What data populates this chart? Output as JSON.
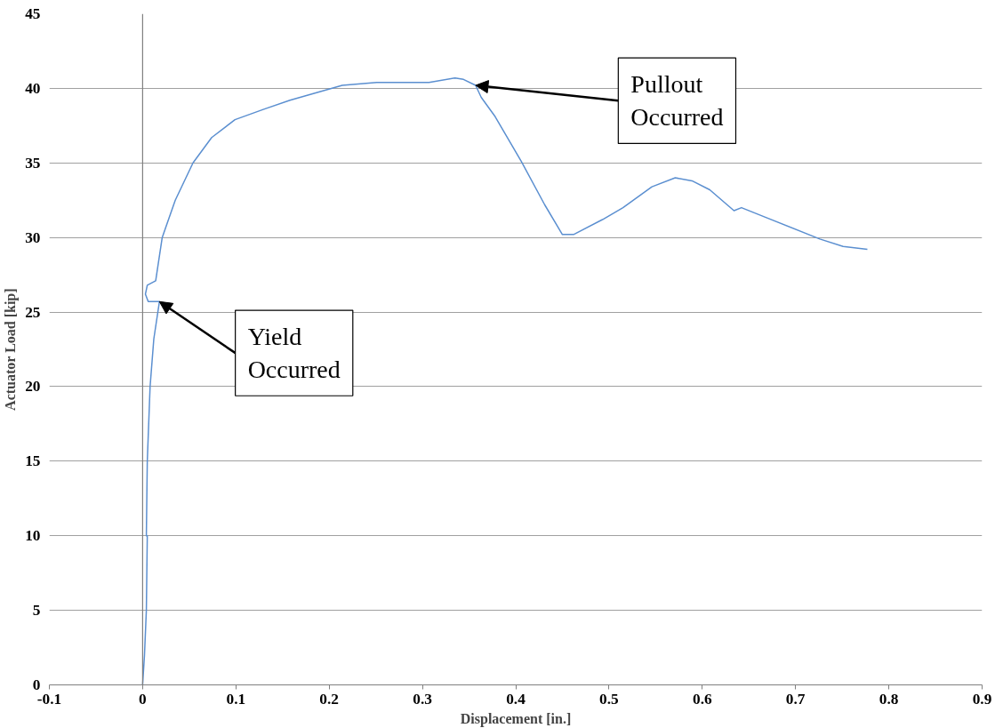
{
  "chart_data": {
    "type": "line",
    "xlabel": "Displacement [in.]",
    "ylabel": "Actuator Load [kip]",
    "series": [
      {
        "color": "#5b8fd0",
        "x": [
          0,
          0.002,
          0.004,
          0.005,
          0.004,
          0.005,
          0.008,
          0.012,
          0.018,
          0.006,
          0.003,
          0.005,
          0.014,
          0.021,
          0.035,
          0.054,
          0.074,
          0.099,
          0.13,
          0.158,
          0.214,
          0.251,
          0.307,
          0.335,
          0.344,
          0.357,
          0.363,
          0.378,
          0.406,
          0.431,
          0.45,
          0.462,
          0.493,
          0.515,
          0.546,
          0.571,
          0.589,
          0.608,
          0.634,
          0.642,
          0.67,
          0.726,
          0.751,
          0.777
        ],
        "values": [
          0,
          2,
          5,
          10,
          10,
          15,
          20,
          23.2,
          25.7,
          25.7,
          26.2,
          26.8,
          27.1,
          30,
          32.5,
          35,
          36.7,
          37.9,
          38.6,
          39.2,
          40.2,
          40.4,
          40.4,
          40.7,
          40.6,
          40.2,
          39.4,
          38.1,
          35.1,
          32.2,
          30.2,
          30.2,
          31.2,
          32,
          33.4,
          34,
          33.8,
          33.2,
          31.8,
          32,
          31.3,
          29.9,
          29.4,
          29.2
        ]
      }
    ],
    "xlim": [
      -0.1,
      0.9
    ],
    "xticks": [
      -0.1,
      0,
      0.1,
      0.2,
      0.3,
      0.4,
      0.5,
      0.6,
      0.7,
      0.8,
      0.9
    ],
    "ylim": [
      0,
      45
    ],
    "yticks": [
      0,
      5,
      10,
      15,
      20,
      25,
      30,
      35,
      40,
      45
    ],
    "grid": "y",
    "marker": "none",
    "line_style": "solid",
    "ref_lines": [
      {
        "axis": "x",
        "value": 0,
        "color": "#808080"
      }
    ],
    "annotations": [
      {
        "text": "Yield Occurred",
        "x": 0.018,
        "y": 25.7
      },
      {
        "text": "Pullout Occurred",
        "x": 0.357,
        "y": 40.2
      }
    ]
  }
}
